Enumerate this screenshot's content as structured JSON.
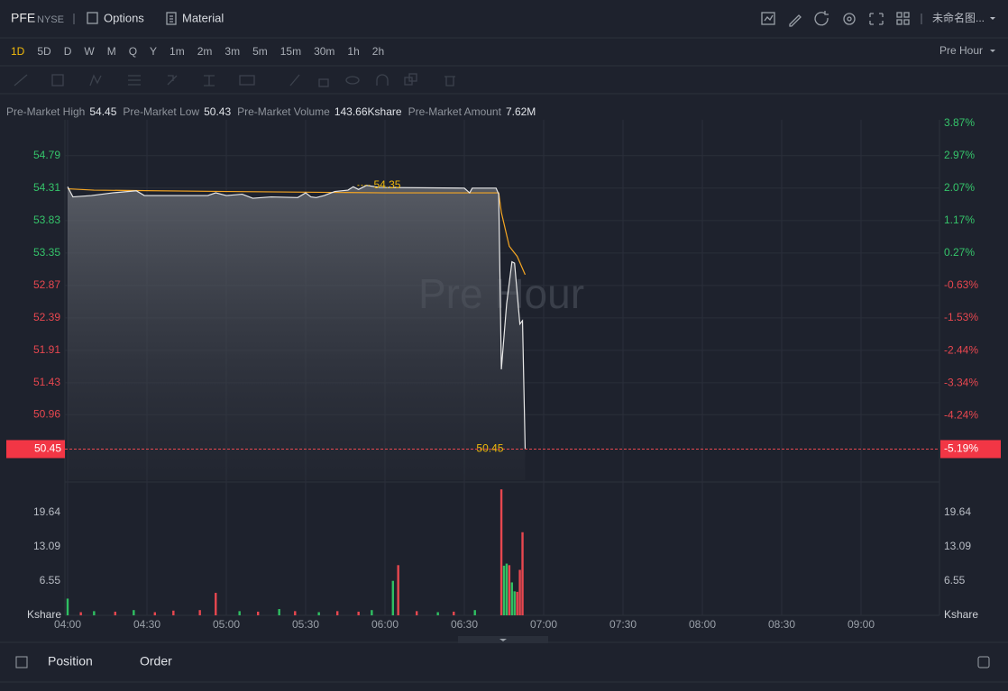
{
  "header": {
    "symbol": "PFE",
    "exchange": "NYSE",
    "menu": [
      "Options",
      "Material"
    ],
    "layout_name": "未命名图..."
  },
  "timeframes": [
    "1D",
    "5D",
    "D",
    "W",
    "M",
    "Q",
    "Y",
    "1m",
    "2m",
    "3m",
    "5m",
    "15m",
    "30m",
    "1h",
    "2h"
  ],
  "active_timeframe": "1D",
  "session_menu": "Pre Hour",
  "stats": [
    {
      "label": "Pre-Market High",
      "value": "54.45"
    },
    {
      "label": "Pre-Market Low",
      "value": "50.43"
    },
    {
      "label": "Pre-Market Volume",
      "value": "143.66Kshare"
    },
    {
      "label": "Pre-Market Amount",
      "value": "7.62M"
    }
  ],
  "chart": {
    "type": "line",
    "watermark": "Pre Hour",
    "xlim": [
      "04:00",
      "09:30"
    ],
    "time_ticks": [
      "04:00",
      "04:30",
      "05:00",
      "05:30",
      "06:00",
      "06:30",
      "07:00",
      "07:30",
      "08:00",
      "08:30",
      "09:00"
    ],
    "ylim": [
      49.99,
      55.32
    ],
    "price_ticks": [
      54.79,
      54.31,
      53.83,
      53.35,
      52.87,
      52.39,
      51.91,
      51.43,
      50.96
    ],
    "y2lim": [
      -6.03,
      3.97
    ],
    "percent_ticks": [
      {
        "value": 3.87,
        "label": "3.87%"
      },
      {
        "value": 2.97,
        "label": "2.97%"
      },
      {
        "value": 2.07,
        "label": "2.07%"
      },
      {
        "value": 1.17,
        "label": "1.17%"
      },
      {
        "value": 0.27,
        "label": "0.27%"
      },
      {
        "value": -0.63,
        "label": "-0.63%"
      },
      {
        "value": -1.53,
        "label": "-1.53%"
      },
      {
        "value": -2.44,
        "label": "-2.44%"
      },
      {
        "value": -3.34,
        "label": "-3.34%"
      },
      {
        "value": -4.24,
        "label": "-4.24%"
      }
    ],
    "last_price": 50.45,
    "last_change": {
      "value": -5.19,
      "label": "-5.19%"
    },
    "high_marker": 54.35,
    "price": {
      "color": "#e8e8e8",
      "times": [
        "04:00",
        "04:02",
        "04:09",
        "04:17",
        "04:26",
        "04:29",
        "04:53",
        "04:56",
        "05:00",
        "05:06",
        "05:10",
        "05:17",
        "05:27",
        "05:30",
        "05:32",
        "05:34",
        "05:37",
        "05:41",
        "05:46",
        "05:48",
        "05:50",
        "05:53",
        "05:58",
        "06:30",
        "06:32",
        "06:33",
        "06:42",
        "06:43",
        "06:44",
        "06:46",
        "06:48",
        "06:49",
        "06:51",
        "06:52",
        "06:53"
      ],
      "values": [
        54.33,
        54.18,
        54.2,
        54.24,
        54.27,
        54.2,
        54.2,
        54.24,
        54.2,
        54.22,
        54.16,
        54.18,
        54.17,
        54.24,
        54.18,
        54.17,
        54.2,
        54.26,
        54.28,
        54.33,
        54.29,
        54.35,
        54.32,
        54.31,
        54.24,
        54.31,
        54.31,
        54.22,
        51.63,
        52.6,
        53.22,
        53.2,
        52.3,
        52.35,
        50.45
      ]
    },
    "average": {
      "color": "#f5a623",
      "times": [
        "04:00",
        "04:10",
        "05:00",
        "06:00",
        "06:43",
        "06:44",
        "06:47",
        "06:50",
        "06:53"
      ],
      "values": [
        54.3,
        54.28,
        54.26,
        54.24,
        54.24,
        53.95,
        53.45,
        53.3,
        53.03
      ]
    },
    "vlim": [
      0,
      25.17
    ],
    "volume_ticks": [
      19.64,
      13.09,
      6.55
    ],
    "volume_unit": "Kshare",
    "volume_up": {
      "color": "#2fbf62",
      "times": [
        "04:00",
        "04:10",
        "04:25",
        "05:05",
        "05:20",
        "05:35",
        "05:55",
        "06:03",
        "06:20",
        "06:34",
        "06:45",
        "06:46",
        "06:48",
        "06:49"
      ],
      "values": [
        3.2,
        0.8,
        1.0,
        0.8,
        1.2,
        0.6,
        1.0,
        6.6,
        0.6,
        1.0,
        9.5,
        9.9,
        6.3,
        4.6
      ]
    },
    "volume_down": {
      "color": "#e8474f",
      "times": [
        "04:05",
        "04:18",
        "04:33",
        "04:40",
        "04:50",
        "04:56",
        "05:12",
        "05:26",
        "05:42",
        "05:50",
        "06:05",
        "06:12",
        "06:26",
        "06:44",
        "06:47",
        "06:50",
        "06:51",
        "06:52"
      ],
      "values": [
        0.6,
        0.7,
        0.6,
        0.9,
        1.0,
        4.3,
        0.7,
        0.8,
        0.8,
        0.7,
        9.6,
        0.8,
        0.7,
        24.1,
        9.6,
        4.5,
        8.7,
        15.9
      ]
    }
  },
  "tabs": [
    "Position",
    "Order"
  ]
}
